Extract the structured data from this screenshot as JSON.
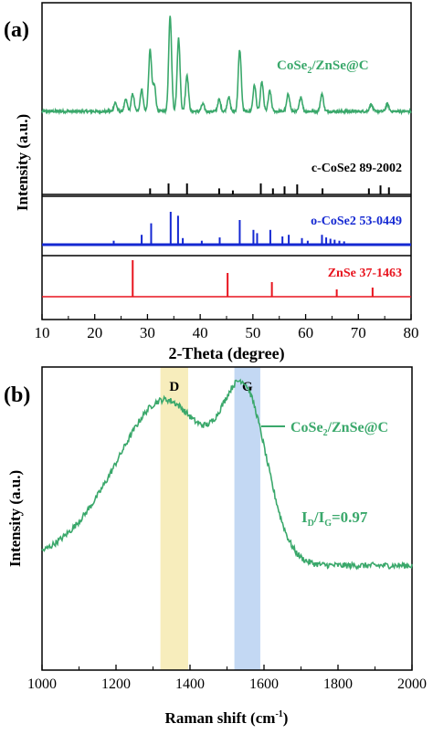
{
  "chart_data": [
    {
      "panel": "(a)",
      "type": "line",
      "xlabel": "2-Theta (degree)",
      "ylabel": "Intensity (a.u.)",
      "xlim": [
        10,
        80
      ],
      "xticks": [
        "10",
        "20",
        "30",
        "40",
        "50",
        "60",
        "70",
        "80"
      ],
      "yticks_shown": false,
      "series": [
        {
          "name": "CoSe2/ZnSe@C",
          "name_main": "CoSe",
          "name_sub": "2",
          "name_rest": "/ZnSe@C",
          "color": "#3aa86b",
          "style": "pattern",
          "baseline": 0.08,
          "peaks": [
            [
              23.9,
              0.06
            ],
            [
              25.9,
              0.08
            ],
            [
              27.2,
              0.12
            ],
            [
              28.9,
              0.15
            ],
            [
              30.5,
              0.42
            ],
            [
              31.3,
              0.18
            ],
            [
              34.3,
              0.65
            ],
            [
              35.9,
              0.5
            ],
            [
              37.5,
              0.25
            ],
            [
              40.5,
              0.05
            ],
            [
              43.6,
              0.08
            ],
            [
              45.4,
              0.1
            ],
            [
              47.5,
              0.42
            ],
            [
              50.3,
              0.18
            ],
            [
              51.7,
              0.2
            ],
            [
              53.2,
              0.14
            ],
            [
              56.7,
              0.12
            ],
            [
              59.1,
              0.1
            ],
            [
              63.1,
              0.12
            ],
            [
              72.4,
              0.05
            ],
            [
              75.5,
              0.05
            ]
          ],
          "noise": 0.018
        },
        {
          "name": "c-CoSe2 89-2002",
          "color": "#000000",
          "style": "sticks",
          "peaks": [
            [
              30.5,
              0.3
            ],
            [
              34.0,
              0.55
            ],
            [
              37.5,
              0.55
            ],
            [
              43.6,
              0.3
            ],
            [
              46.2,
              0.2
            ],
            [
              51.5,
              0.55
            ],
            [
              53.8,
              0.3
            ],
            [
              56.0,
              0.4
            ],
            [
              58.4,
              0.5
            ],
            [
              63.2,
              0.3
            ],
            [
              72.0,
              0.3
            ],
            [
              74.2,
              0.45
            ],
            [
              75.8,
              0.35
            ]
          ]
        },
        {
          "name": "o-CoSe2 53-0449",
          "color": "#1428d2",
          "style": "sticks",
          "peaks": [
            [
              23.6,
              0.12
            ],
            [
              28.9,
              0.3
            ],
            [
              30.7,
              0.65
            ],
            [
              34.4,
              1.0
            ],
            [
              35.8,
              0.88
            ],
            [
              36.7,
              0.2
            ],
            [
              40.3,
              0.12
            ],
            [
              43.7,
              0.22
            ],
            [
              47.5,
              0.75
            ],
            [
              50.1,
              0.45
            ],
            [
              50.8,
              0.35
            ],
            [
              53.3,
              0.45
            ],
            [
              55.6,
              0.25
            ],
            [
              56.8,
              0.3
            ],
            [
              59.3,
              0.2
            ],
            [
              60.4,
              0.12
            ],
            [
              63.1,
              0.3
            ],
            [
              63.9,
              0.22
            ],
            [
              64.7,
              0.18
            ],
            [
              65.5,
              0.15
            ],
            [
              66.4,
              0.12
            ],
            [
              67.3,
              0.1
            ]
          ]
        },
        {
          "name": "ZnSe 37-1463",
          "color": "#e8141e",
          "style": "sticks",
          "peaks": [
            [
              27.2,
              1.0
            ],
            [
              45.2,
              0.65
            ],
            [
              53.6,
              0.4
            ],
            [
              65.9,
              0.2
            ],
            [
              72.7,
              0.25
            ]
          ]
        }
      ]
    },
    {
      "panel": "(b)",
      "type": "line",
      "xlabel_main": "Raman shift (cm",
      "xlabel_sup": "-1",
      "xlabel_end": ")",
      "ylabel": "Intensity (a.u.)",
      "xlim": [
        1000,
        2000
      ],
      "xticks": [
        "1000",
        "1200",
        "1400",
        "1600",
        "1800",
        "2000"
      ],
      "yticks_shown": false,
      "bands": [
        {
          "label": "D",
          "x_range": [
            1320,
            1395
          ],
          "color": "#f3e6a0"
        },
        {
          "label": "G",
          "x_range": [
            1520,
            1590
          ],
          "color": "#aac8ee"
        }
      ],
      "series": [
        {
          "name_main": "CoSe",
          "name_sub": "2",
          "name_rest": "/ZnSe@C",
          "color": "#3aa86b",
          "baseline": 0.05,
          "bands": [
            [
              1350,
              0.4,
              115
            ],
            [
              1550,
              0.49,
              60
            ],
            [
              1250,
              0.18,
              150
            ]
          ],
          "tail": [
            1000,
            0.02
          ],
          "noise": 0.02
        }
      ],
      "annotation": {
        "main": "I",
        "sub1": "D",
        "slash": "/I",
        "sub2": "G",
        "value": "=0.97",
        "color": "#3aa86b"
      }
    }
  ]
}
